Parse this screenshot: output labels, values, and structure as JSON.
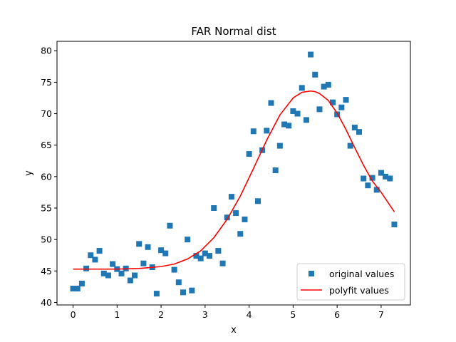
{
  "chart_data": {
    "type": "scatter",
    "title": "FAR Normal dist",
    "xlabel": "x",
    "ylabel": "y",
    "xlim": [
      -0.365,
      7.665
    ],
    "ylim": [
      39.6,
      81.5
    ],
    "xticks": [
      0,
      1,
      2,
      3,
      4,
      5,
      6,
      7
    ],
    "yticks": [
      40,
      45,
      50,
      55,
      60,
      65,
      70,
      75,
      80
    ],
    "grid": false,
    "legend_position": "lower right",
    "series": [
      {
        "name": "original values",
        "kind": "scatter",
        "marker": "square",
        "color": "#1f77b4",
        "x": [
          0.0,
          0.1,
          0.2,
          0.3,
          0.4,
          0.5,
          0.6,
          0.7,
          0.8,
          0.9,
          1.0,
          1.1,
          1.2,
          1.3,
          1.4,
          1.5,
          1.6,
          1.7,
          1.8,
          1.9,
          2.0,
          2.1,
          2.2,
          2.3,
          2.4,
          2.5,
          2.6,
          2.7,
          2.8,
          2.9,
          3.0,
          3.1,
          3.2,
          3.3,
          3.4,
          3.5,
          3.6,
          3.7,
          3.8,
          3.9,
          4.0,
          4.1,
          4.2,
          4.3,
          4.4,
          4.5,
          4.6,
          4.7,
          4.8,
          4.9,
          5.0,
          5.1,
          5.2,
          5.3,
          5.4,
          5.5,
          5.6,
          5.7,
          5.8,
          5.9,
          6.0,
          6.1,
          6.2,
          6.3,
          6.4,
          6.5,
          6.6,
          6.7,
          6.8,
          6.9,
          7.0,
          7.1,
          7.2,
          7.3
        ],
        "y": [
          42.2,
          42.2,
          43.0,
          45.4,
          47.5,
          46.8,
          48.2,
          44.6,
          44.3,
          46.1,
          45.3,
          44.6,
          45.4,
          43.5,
          44.3,
          49.3,
          46.2,
          48.8,
          45.6,
          41.4,
          48.3,
          47.8,
          52.2,
          45.2,
          43.2,
          41.6,
          50.0,
          41.9,
          47.4,
          47.0,
          47.8,
          47.4,
          55.0,
          48.2,
          46.2,
          53.5,
          56.8,
          54.2,
          50.9,
          53.2,
          63.6,
          67.2,
          56.1,
          64.2,
          67.3,
          71.7,
          61.0,
          64.9,
          68.3,
          68.1,
          70.4,
          70.0,
          74.1,
          69.0,
          79.4,
          76.2,
          70.7,
          74.3,
          74.6,
          71.8,
          69.9,
          71.0,
          72.2,
          64.9,
          67.8,
          67.1,
          59.7,
          58.6,
          59.8,
          57.9,
          60.6,
          60.0,
          59.7,
          52.4
        ]
      },
      {
        "name": "polyfit values",
        "kind": "line",
        "color": "#ff0000",
        "x": [
          0.0,
          0.5,
          1.0,
          1.5,
          2.0,
          2.3,
          2.6,
          2.9,
          3.2,
          3.5,
          3.8,
          4.1,
          4.4,
          4.7,
          5.0,
          5.2,
          5.4,
          5.5,
          5.6,
          5.8,
          6.0,
          6.2,
          6.4,
          6.6,
          6.8,
          7.0,
          7.3
        ],
        "y": [
          45.3,
          45.3,
          45.3,
          45.4,
          45.7,
          46.1,
          46.9,
          48.2,
          50.3,
          53.2,
          56.9,
          61.3,
          65.8,
          69.8,
          72.5,
          73.4,
          73.6,
          73.5,
          73.2,
          72.1,
          70.1,
          67.5,
          64.6,
          61.8,
          59.3,
          57.5,
          54.4
        ]
      }
    ]
  }
}
